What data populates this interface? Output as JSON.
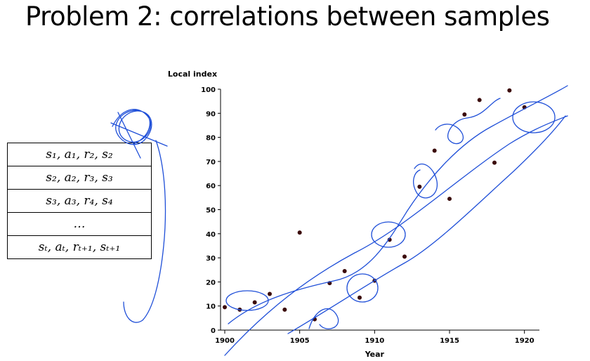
{
  "slide": {
    "title": "Problem 2: correlations between samples"
  },
  "buffer": {
    "rows": [
      "s₁, a₁, r₂, s₂",
      "s₂, a₂, r₃, s₃",
      "s₃, a₃, r₄, s₄",
      "…",
      "sₜ, aₜ, rₜ₊₁, sₜ₊₁"
    ]
  },
  "chart_data": {
    "type": "scatter",
    "title": "",
    "xlabel": "Year",
    "ylabel": "Local index",
    "xlim": [
      1900,
      1921
    ],
    "ylim": [
      0,
      100
    ],
    "xticks": [
      1900,
      1905,
      1910,
      1915,
      1920
    ],
    "yticks": [
      0,
      10,
      20,
      30,
      40,
      50,
      60,
      70,
      80,
      90,
      100
    ],
    "grid": false,
    "point_color": "#3b0b0b",
    "annotation_color": "#1f4fd8",
    "points": [
      {
        "x": 1900,
        "y": 9.5
      },
      {
        "x": 1901,
        "y": 8.5
      },
      {
        "x": 1902,
        "y": 11.5
      },
      {
        "x": 1903,
        "y": 15
      },
      {
        "x": 1904,
        "y": 8.5
      },
      {
        "x": 1905,
        "y": 40.5
      },
      {
        "x": 1906,
        "y": 4.5
      },
      {
        "x": 1907,
        "y": 19.5
      },
      {
        "x": 1908,
        "y": 24.5
      },
      {
        "x": 1909,
        "y": 13.5
      },
      {
        "x": 1910,
        "y": 20.5
      },
      {
        "x": 1911,
        "y": 37.5
      },
      {
        "x": 1912,
        "y": 30.5
      },
      {
        "x": 1913,
        "y": 59.5
      },
      {
        "x": 1914,
        "y": 74.5
      },
      {
        "x": 1915,
        "y": 54.5
      },
      {
        "x": 1916,
        "y": 89.5
      },
      {
        "x": 1917,
        "y": 95.5
      },
      {
        "x": 1918,
        "y": 69.5
      },
      {
        "x": 1919,
        "y": 99.5
      },
      {
        "x": 1920,
        "y": 92.5
      }
    ]
  }
}
